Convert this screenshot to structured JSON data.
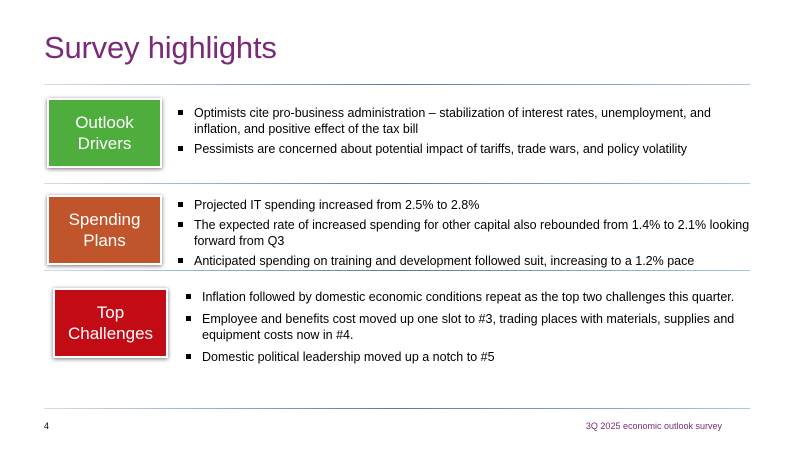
{
  "title": "Survey highlights",
  "sections": [
    {
      "label": "Outlook\nDrivers",
      "color": "#4ead3c",
      "bullets": [
        "Optimists cite pro-business administration – stabilization of interest rates, unemployment, and inflation, and positive effect of the tax bill",
        "Pessimists are concerned about potential impact of tariffs, trade wars, and policy volatility"
      ]
    },
    {
      "label": "Spending\nPlans",
      "color": "#c0542a",
      "bullets": [
        "Projected IT spending increased from 2.5% to 2.8%",
        "The expected rate of increased spending for other capital also rebounded from 1.4% to 2.1% looking forward from Q3",
        "Anticipated spending on training and development followed suit, increasing to a 1.2% pace"
      ]
    },
    {
      "label": "Top\nChallenges",
      "color": "#c20b14",
      "bullets": [
        "Inflation followed by domestic economic conditions repeat as the top two challenges this quarter.",
        "Employee and benefits cost moved up one slot to #3, trading places with materials, supplies and equipment costs now in #4.",
        "Domestic political leadership moved up a notch to #5"
      ]
    }
  ],
  "footer": {
    "page_number": "4",
    "caption": "3Q 2025 economic outlook survey"
  }
}
